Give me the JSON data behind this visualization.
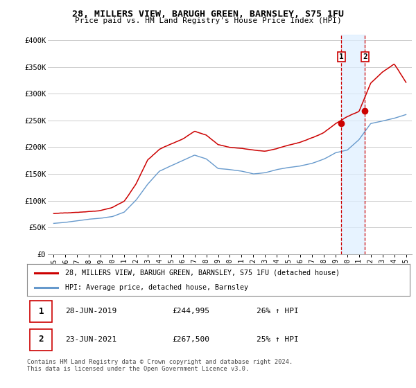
{
  "title": "28, MILLERS VIEW, BARUGH GREEN, BARNSLEY, S75 1FU",
  "subtitle": "Price paid vs. HM Land Registry's House Price Index (HPI)",
  "background_color": "#ffffff",
  "grid_color": "#cccccc",
  "red_line_color": "#cc0000",
  "blue_line_color": "#6699cc",
  "shade_color": "#ddeeff",
  "marker_line_color": "#cc0000",
  "sale1_price": 244995,
  "sale2_price": 267500,
  "sale1_year": 2019.5,
  "sale2_year": 2021.5,
  "legend_entries": [
    "28, MILLERS VIEW, BARUGH GREEN, BARNSLEY, S75 1FU (detached house)",
    "HPI: Average price, detached house, Barnsley"
  ],
  "table_rows": [
    [
      "1",
      "28-JUN-2019",
      "£244,995",
      "26% ↑ HPI"
    ],
    [
      "2",
      "23-JUN-2021",
      "£267,500",
      "25% ↑ HPI"
    ]
  ],
  "footer": "Contains HM Land Registry data © Crown copyright and database right 2024.\nThis data is licensed under the Open Government Licence v3.0.",
  "ylim": [
    0,
    410000
  ],
  "yticks": [
    0,
    50000,
    100000,
    150000,
    200000,
    250000,
    300000,
    350000,
    400000
  ],
  "ytick_labels": [
    "£0",
    "£50K",
    "£100K",
    "£150K",
    "£200K",
    "£250K",
    "£300K",
    "£350K",
    "£400K"
  ],
  "x_years": [
    1995,
    1996,
    1997,
    1998,
    1999,
    2000,
    2001,
    2002,
    2003,
    2004,
    2005,
    2006,
    2007,
    2008,
    2009,
    2010,
    2011,
    2012,
    2013,
    2014,
    2015,
    2016,
    2017,
    2018,
    2019,
    2020,
    2021,
    2022,
    2023,
    2024,
    2025
  ],
  "xlim": [
    1994.5,
    2025.5
  ]
}
